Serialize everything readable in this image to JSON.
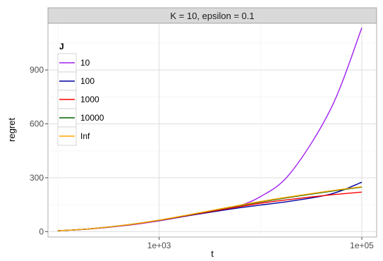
{
  "chart_data": {
    "type": "line",
    "facet_label": "K = 10, epsilon = 0.1",
    "xlabel": "t",
    "ylabel": "regret",
    "x_scale": "log10",
    "xlim": [
      80,
      140000
    ],
    "ylim": [
      -30,
      1160
    ],
    "x_ticks": [
      1000,
      100000
    ],
    "x_tick_labels": [
      "1e+03",
      "1e+05"
    ],
    "y_ticks": [
      0,
      300,
      600,
      900
    ],
    "y_tick_labels": [
      "0",
      "300",
      "600",
      "900"
    ],
    "grid": true,
    "legend": {
      "title": "J",
      "position": "top-left-inside"
    },
    "series": [
      {
        "name": "10",
        "color": "#a020f0",
        "x": [
          100,
          200,
          500,
          1000,
          2000,
          5000,
          10000,
          20000,
          50000,
          100000
        ],
        "y": [
          5,
          14,
          36,
          60,
          90,
          130,
          195,
          330,
          690,
          1135
        ]
      },
      {
        "name": "100",
        "color": "#0000a0",
        "x": [
          100,
          200,
          500,
          1000,
          2000,
          5000,
          10000,
          20000,
          50000,
          100000
        ],
        "y": [
          5,
          15,
          38,
          62,
          90,
          125,
          148,
          170,
          210,
          275
        ]
      },
      {
        "name": "1000",
        "color": "#ff0000",
        "x": [
          100,
          200,
          500,
          1000,
          2000,
          5000,
          10000,
          20000,
          50000,
          100000
        ],
        "y": [
          5,
          15,
          38,
          63,
          92,
          130,
          158,
          180,
          205,
          220
        ]
      },
      {
        "name": "10000",
        "color": "#006400",
        "x": [
          100,
          200,
          500,
          1000,
          2000,
          5000,
          10000,
          20000,
          50000,
          100000
        ],
        "y": [
          5,
          15,
          39,
          64,
          94,
          135,
          165,
          192,
          225,
          248
        ]
      },
      {
        "name": "Inf",
        "color": "#ffa500",
        "x": [
          100,
          200,
          500,
          1000,
          2000,
          5000,
          10000,
          20000,
          50000,
          100000
        ],
        "y": [
          5,
          15,
          39,
          64,
          95,
          137,
          168,
          195,
          228,
          250
        ]
      }
    ]
  }
}
